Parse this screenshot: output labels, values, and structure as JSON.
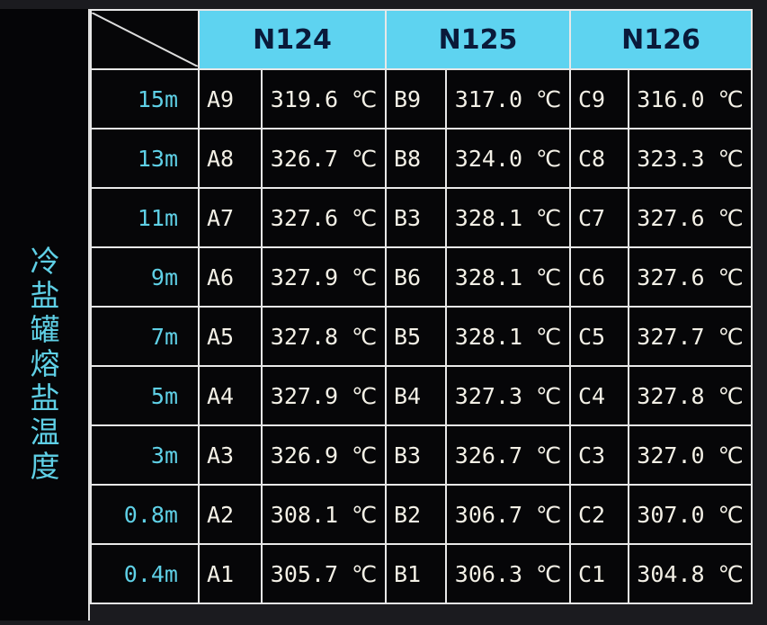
{
  "side_title": "冷盐罐熔盐温度",
  "headers": [
    "N124",
    "N125",
    "N126"
  ],
  "unit": "℃",
  "rows": [
    {
      "level": "15m",
      "cells": [
        {
          "id": "A9",
          "value": "319.6"
        },
        {
          "id": "B9",
          "value": "317.0"
        },
        {
          "id": "C9",
          "value": "316.0"
        }
      ]
    },
    {
      "level": "13m",
      "cells": [
        {
          "id": "A8",
          "value": "326.7"
        },
        {
          "id": "B8",
          "value": "324.0"
        },
        {
          "id": "C8",
          "value": "323.3"
        }
      ]
    },
    {
      "level": "11m",
      "cells": [
        {
          "id": "A7",
          "value": "327.6"
        },
        {
          "id": "B3",
          "value": "328.1"
        },
        {
          "id": "C7",
          "value": "327.6"
        }
      ]
    },
    {
      "level": "9m",
      "cells": [
        {
          "id": "A6",
          "value": "327.9"
        },
        {
          "id": "B6",
          "value": "328.1"
        },
        {
          "id": "C6",
          "value": "327.6"
        }
      ]
    },
    {
      "level": "7m",
      "cells": [
        {
          "id": "A5",
          "value": "327.8"
        },
        {
          "id": "B5",
          "value": "328.1"
        },
        {
          "id": "C5",
          "value": "327.7"
        }
      ]
    },
    {
      "level": "5m",
      "cells": [
        {
          "id": "A4",
          "value": "327.9"
        },
        {
          "id": "B4",
          "value": "327.3"
        },
        {
          "id": "C4",
          "value": "327.8"
        }
      ]
    },
    {
      "level": "3m",
      "cells": [
        {
          "id": "A3",
          "value": "326.9"
        },
        {
          "id": "B3",
          "value": "326.7"
        },
        {
          "id": "C3",
          "value": "327.0"
        }
      ]
    },
    {
      "level": "0.8m",
      "cells": [
        {
          "id": "A2",
          "value": "308.1"
        },
        {
          "id": "B2",
          "value": "306.7"
        },
        {
          "id": "C2",
          "value": "307.0"
        }
      ]
    },
    {
      "level": "0.4m",
      "cells": [
        {
          "id": "A1",
          "value": "305.7"
        },
        {
          "id": "B1",
          "value": "306.3"
        },
        {
          "id": "C1",
          "value": "304.8"
        }
      ]
    }
  ]
}
